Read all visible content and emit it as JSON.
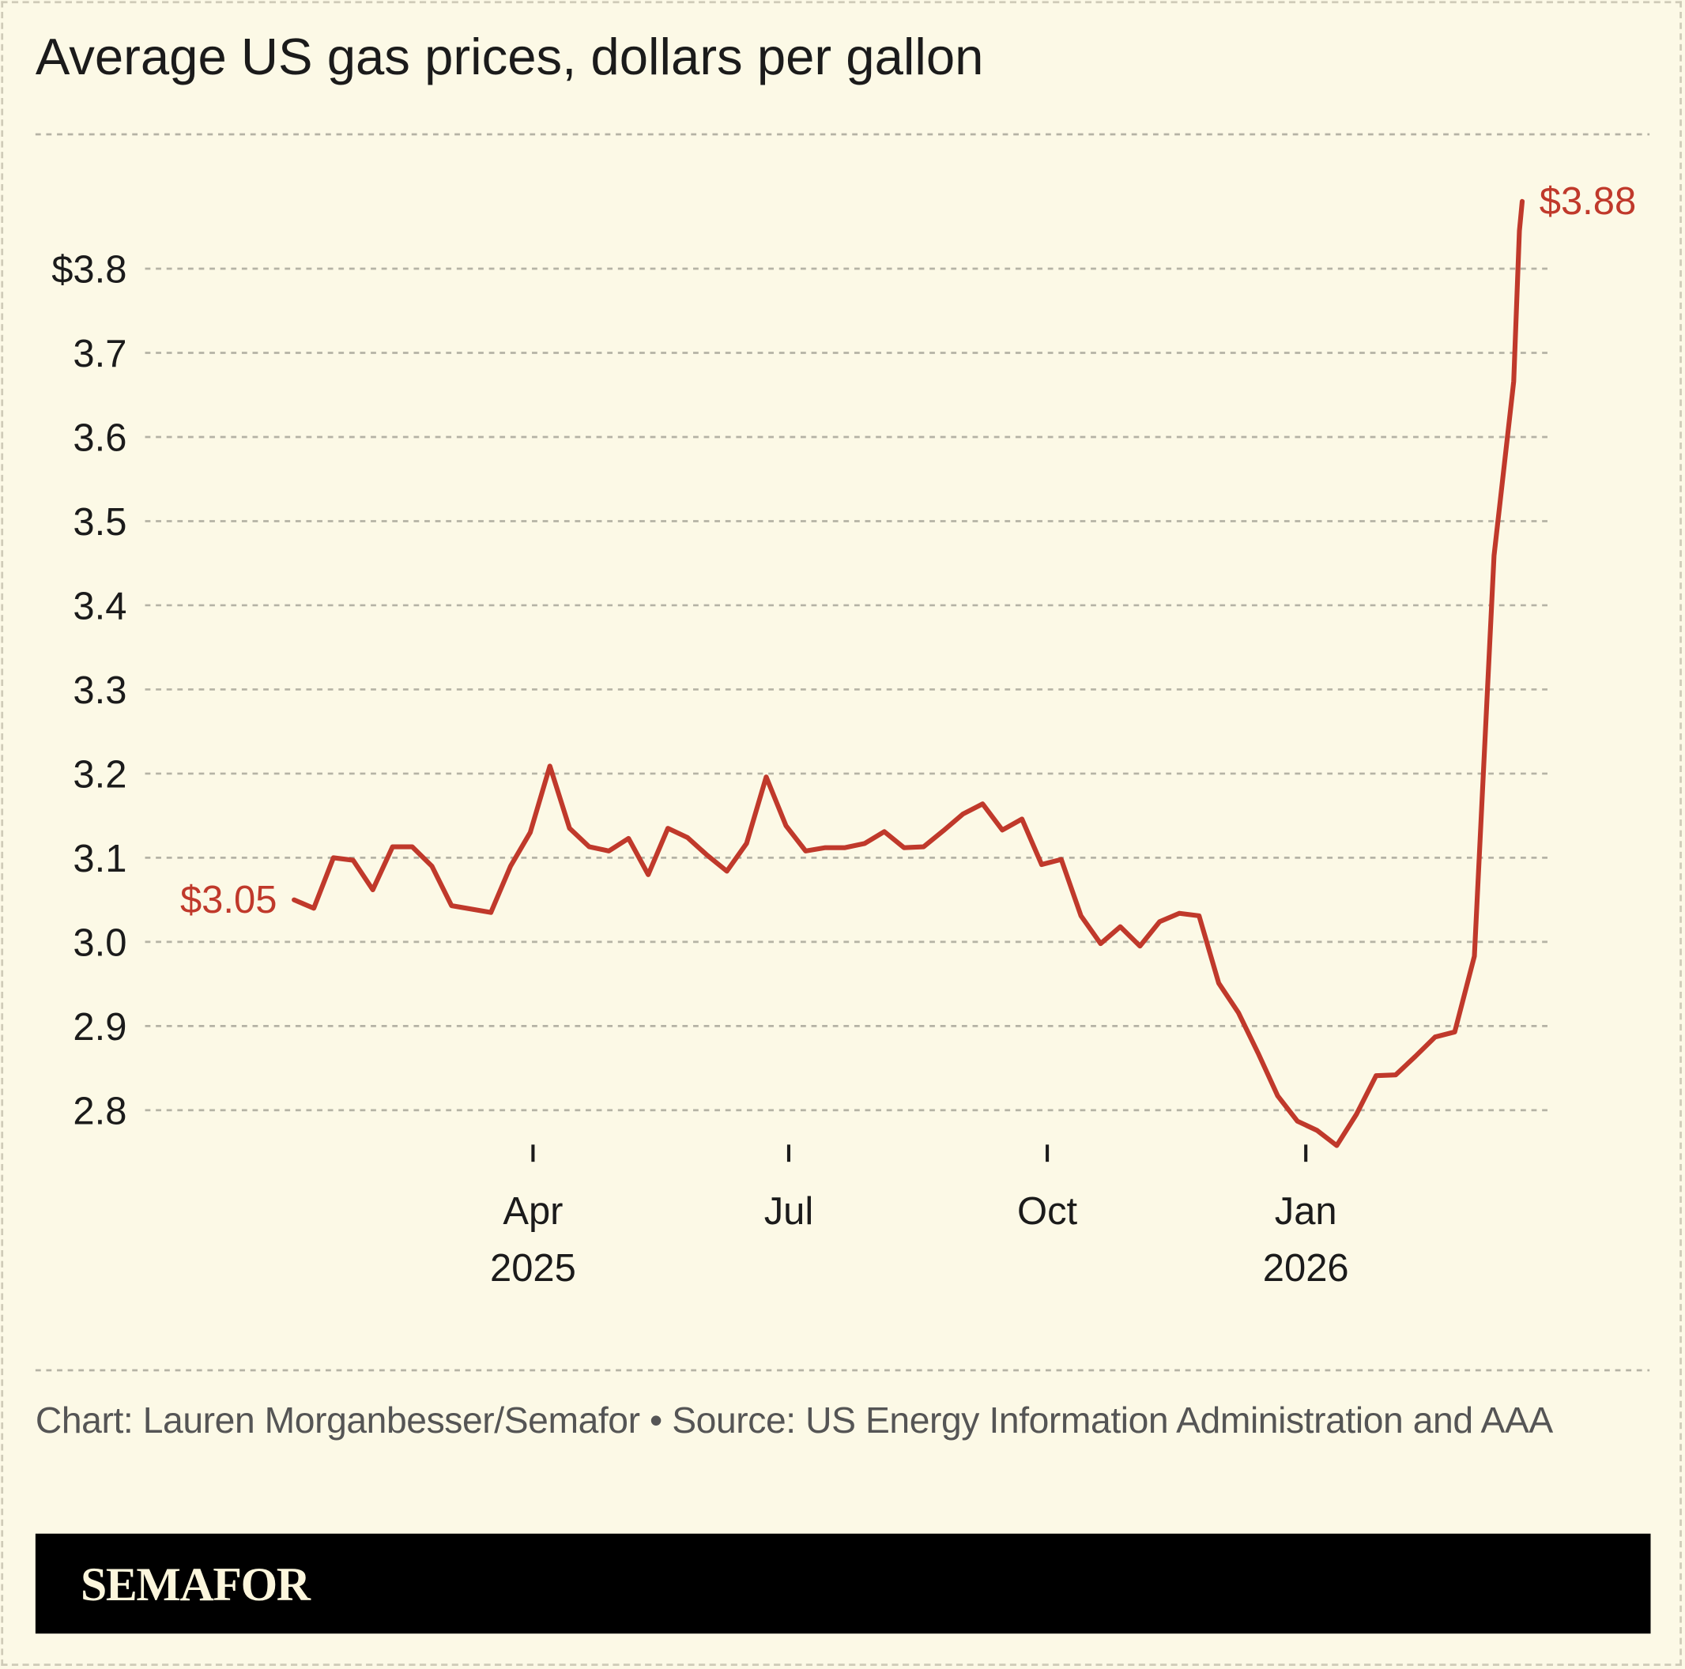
{
  "title": "Average US gas prices, dollars per gallon",
  "source": "Chart: Lauren Morganbesser/Semafor • Source: US Energy Information Administration and AAA",
  "brand": "SEMAFOR",
  "colors": {
    "line": "#c0392b",
    "background": "#fcf9e6",
    "grid": "#b5b3a5",
    "brand_bar": "#000000",
    "brand_text": "#fcf6dc"
  },
  "chart_data": {
    "type": "line",
    "title": "Average US gas prices, dollars per gallon",
    "xlabel": "",
    "ylabel": "",
    "ylim": [
      2.75,
      3.9
    ],
    "grid": true,
    "yticks": [
      {
        "value": 3.8,
        "label": "$3.8"
      },
      {
        "value": 3.7,
        "label": "3.7"
      },
      {
        "value": 3.6,
        "label": "3.6"
      },
      {
        "value": 3.5,
        "label": "3.5"
      },
      {
        "value": 3.4,
        "label": "3.4"
      },
      {
        "value": 3.3,
        "label": "3.3"
      },
      {
        "value": 3.2,
        "label": "3.2"
      },
      {
        "value": 3.1,
        "label": "3.1"
      },
      {
        "value": 3.0,
        "label": "3.0"
      },
      {
        "value": 2.9,
        "label": "2.9"
      },
      {
        "value": 2.8,
        "label": "2.8"
      }
    ],
    "xticks": [
      {
        "date": "2025-04-01",
        "label": "Apr",
        "sublabel": "2025"
      },
      {
        "date": "2025-07-01",
        "label": "Jul",
        "sublabel": ""
      },
      {
        "date": "2025-10-01",
        "label": "Oct",
        "sublabel": ""
      },
      {
        "date": "2026-01-01",
        "label": "Jan",
        "sublabel": "2026"
      }
    ],
    "annotations": [
      {
        "label": "$3.05",
        "position": "start"
      },
      {
        "label": "$3.88",
        "position": "end"
      }
    ],
    "series": [
      {
        "points": [
          [
            "2025-01-06",
            3.05
          ],
          [
            "2025-01-13",
            3.04
          ],
          [
            "2025-01-20",
            3.1
          ],
          [
            "2025-01-27",
            3.097
          ],
          [
            "2025-02-03",
            3.062
          ],
          [
            "2025-02-10",
            3.113
          ],
          [
            "2025-02-17",
            3.113
          ],
          [
            "2025-02-24",
            3.09
          ],
          [
            "2025-03-03",
            3.043
          ],
          [
            "2025-03-17",
            3.035
          ],
          [
            "2025-03-24",
            3.09
          ],
          [
            "2025-03-31",
            3.13
          ],
          [
            "2025-04-07",
            3.209
          ],
          [
            "2025-04-14",
            3.135
          ],
          [
            "2025-04-21",
            3.113
          ],
          [
            "2025-04-28",
            3.108
          ],
          [
            "2025-05-05",
            3.123
          ],
          [
            "2025-05-12",
            3.08
          ],
          [
            "2025-05-19",
            3.135
          ],
          [
            "2025-05-26",
            3.124
          ],
          [
            "2025-06-02",
            3.103
          ],
          [
            "2025-06-09",
            3.084
          ],
          [
            "2025-06-16",
            3.117
          ],
          [
            "2025-06-23",
            3.196
          ],
          [
            "2025-06-30",
            3.138
          ],
          [
            "2025-07-07",
            3.108
          ],
          [
            "2025-07-14",
            3.112
          ],
          [
            "2025-07-21",
            3.112
          ],
          [
            "2025-07-28",
            3.117
          ],
          [
            "2025-08-04",
            3.131
          ],
          [
            "2025-08-11",
            3.112
          ],
          [
            "2025-08-18",
            3.113
          ],
          [
            "2025-08-25",
            3.132
          ],
          [
            "2025-09-01",
            3.152
          ],
          [
            "2025-09-08",
            3.164
          ],
          [
            "2025-09-15",
            3.133
          ],
          [
            "2025-09-22",
            3.146
          ],
          [
            "2025-09-29",
            3.092
          ],
          [
            "2025-10-06",
            3.098
          ],
          [
            "2025-10-13",
            3.031
          ],
          [
            "2025-10-20",
            2.998
          ],
          [
            "2025-10-27",
            3.018
          ],
          [
            "2025-11-03",
            2.995
          ],
          [
            "2025-11-10",
            3.024
          ],
          [
            "2025-11-17",
            3.034
          ],
          [
            "2025-11-24",
            3.031
          ],
          [
            "2025-12-01",
            2.951
          ],
          [
            "2025-12-08",
            2.916
          ],
          [
            "2025-12-15",
            2.868
          ],
          [
            "2025-12-22",
            2.817
          ],
          [
            "2025-12-29",
            2.787
          ],
          [
            "2026-01-05",
            2.776
          ],
          [
            "2026-01-12",
            2.758
          ],
          [
            "2026-01-19",
            2.795
          ],
          [
            "2026-01-26",
            2.841
          ],
          [
            "2026-02-02",
            2.842
          ],
          [
            "2026-02-09",
            2.864
          ],
          [
            "2026-02-16",
            2.887
          ],
          [
            "2026-02-23",
            2.893
          ],
          [
            "2026-03-02",
            2.983
          ],
          [
            "2026-03-09",
            3.459
          ],
          [
            "2026-03-16",
            3.666
          ],
          [
            "2026-03-18",
            3.845
          ],
          [
            "2026-03-19",
            3.88
          ]
        ]
      }
    ]
  }
}
